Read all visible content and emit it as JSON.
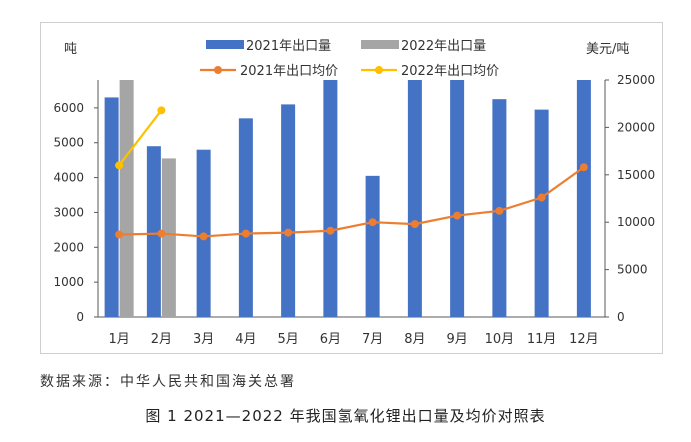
{
  "colors": {
    "bar_2021": "#4472C4",
    "bar_2022": "#A5A5A5",
    "line_2021": "#ED7D31",
    "line_2022": "#FFC000",
    "axis": "#595959"
  },
  "chart_data": {
    "type": "bar+line",
    "categories": [
      "1月",
      "2月",
      "3月",
      "4月",
      "5月",
      "6月",
      "7月",
      "8月",
      "9月",
      "10月",
      "11月",
      "12月"
    ],
    "left_axis": {
      "label": "吨",
      "ticks": [
        0,
        1000,
        2000,
        3000,
        4000,
        5000,
        6000
      ],
      "range": [
        0,
        6800
      ]
    },
    "right_axis": {
      "label": "美元/吨",
      "ticks": [
        0,
        5000,
        10000,
        15000,
        20000,
        25000
      ],
      "range": [
        0,
        25000
      ]
    },
    "series": [
      {
        "name": "2021年出口量",
        "kind": "bar",
        "axis": "left",
        "values": [
          6300,
          4900,
          4800,
          5700,
          6100,
          6800,
          4050,
          6800,
          6800,
          6250,
          5950,
          6800
        ]
      },
      {
        "name": "2022年出口量",
        "kind": "bar",
        "axis": "left",
        "values": [
          6800,
          4550,
          null,
          null,
          null,
          null,
          null,
          null,
          null,
          null,
          null,
          null
        ]
      },
      {
        "name": "2021年出口均价",
        "kind": "line",
        "axis": "right",
        "values": [
          8700,
          8800,
          8500,
          8800,
          8900,
          9100,
          10000,
          9800,
          10700,
          11200,
          12600,
          15800
        ]
      },
      {
        "name": "2022年出口均价",
        "kind": "line",
        "axis": "right",
        "values": [
          16000,
          21800,
          null,
          null,
          null,
          null,
          null,
          null,
          null,
          null,
          null,
          null
        ]
      }
    ],
    "legend_position": "top",
    "grid": false
  },
  "source_text": "数据来源：中华人民共和国海关总署",
  "figure_title": "图 1  2021—2022 年我国氢氧化锂出口量及均价对照表"
}
